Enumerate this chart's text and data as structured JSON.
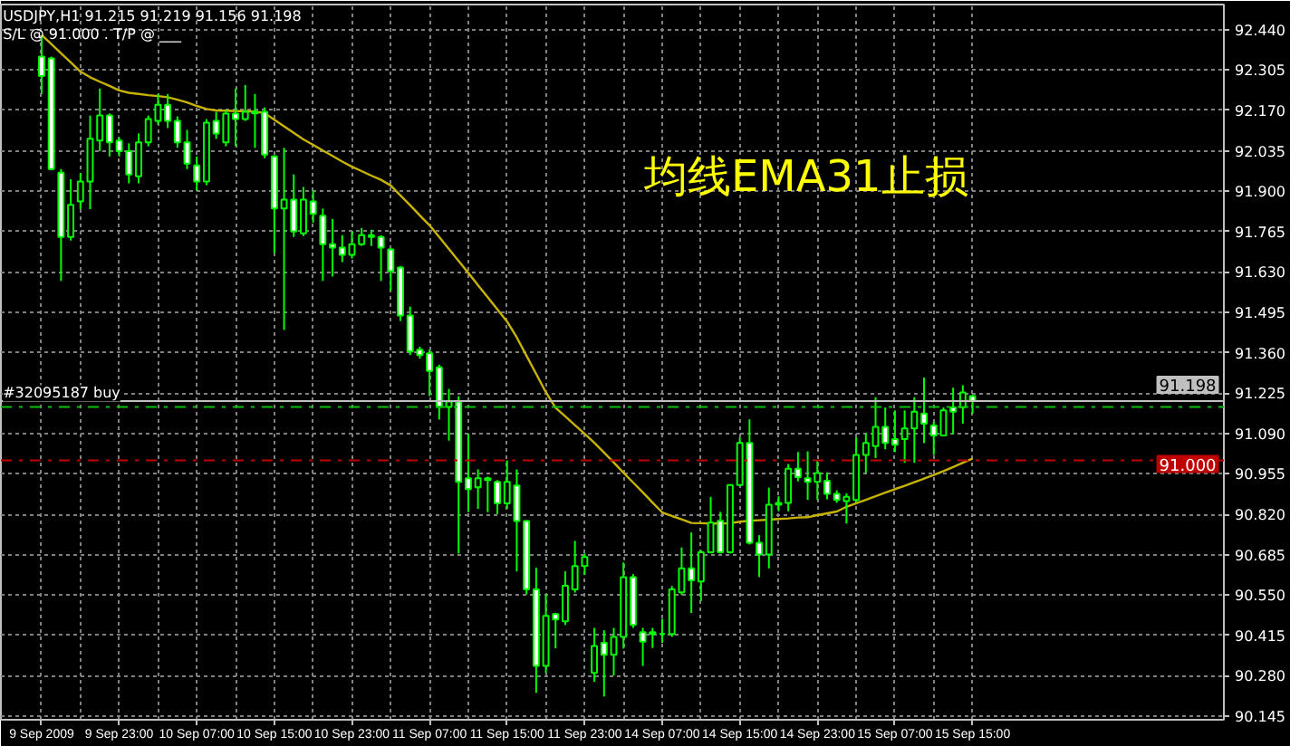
{
  "chart_data": {
    "type": "candlestick",
    "title": "USDJPY,H1  91.215 91.219 91.156 91.198",
    "subtitle": "S/L @ 91.000 . T/P @ ___",
    "annotations": [
      "均线EMA31止损"
    ],
    "color": "#00ff00",
    "categories": [
      "9 Sep 2009",
      null,
      null,
      null,
      null,
      null,
      null,
      null,
      "9 Sep 23:00",
      null,
      null,
      null,
      null,
      null,
      null,
      null,
      "10 Sep 07:00",
      null,
      null,
      null,
      null,
      null,
      null,
      null,
      "10 Sep 15:00",
      null,
      null,
      null,
      null,
      null,
      null,
      null,
      "10 Sep 23:00",
      null,
      null,
      null,
      null,
      null,
      null,
      null,
      "11 Sep 07:00",
      null,
      null,
      null,
      null,
      null,
      null,
      null,
      "11 Sep 15:00",
      null,
      null,
      null,
      null,
      null,
      null,
      null,
      "11 Sep 23:00",
      null,
      null,
      null,
      null,
      null,
      null,
      null,
      "14 Sep 07:00",
      null,
      null,
      null,
      null,
      null,
      null,
      null,
      "14 Sep 15:00",
      null,
      null,
      null,
      null,
      null,
      null,
      null,
      "14 Sep 23:00",
      null,
      null,
      null,
      null,
      null,
      null,
      null,
      "15 Sep 07:00",
      null,
      null,
      null,
      null,
      null,
      null,
      null,
      "15 Sep 15:00"
    ],
    "ohlc": [
      [
        92.35,
        92.42,
        92.225,
        92.285
      ],
      [
        92.344,
        92.35,
        91.97,
        91.974
      ],
      [
        91.962,
        91.974,
        91.6,
        91.747
      ],
      [
        91.747,
        91.94,
        91.735,
        91.854
      ],
      [
        91.866,
        91.96,
        91.84,
        91.932
      ],
      [
        91.932,
        92.153,
        91.84,
        92.075
      ],
      [
        92.069,
        92.243,
        92.034,
        92.153
      ],
      [
        92.153,
        92.16,
        92.016,
        92.063
      ],
      [
        92.069,
        92.08,
        92.016,
        92.034
      ],
      [
        92.034,
        92.06,
        91.926,
        91.956
      ],
      [
        91.95,
        92.093,
        91.926,
        92.063
      ],
      [
        92.063,
        92.153,
        92.05,
        92.141
      ],
      [
        92.135,
        92.225,
        92.123,
        92.189
      ],
      [
        92.189,
        92.225,
        92.111,
        92.135
      ],
      [
        92.135,
        92.15,
        92.045,
        92.063
      ],
      [
        92.063,
        92.105,
        91.974,
        91.992
      ],
      [
        91.986,
        92.016,
        91.902,
        91.932
      ],
      [
        91.932,
        92.141,
        91.92,
        92.129
      ],
      [
        92.135,
        92.165,
        92.075,
        92.093
      ],
      [
        92.063,
        92.171,
        92.05,
        92.159
      ],
      [
        92.159,
        92.243,
        92.05,
        92.141
      ],
      [
        92.141,
        92.255,
        92.135,
        92.165
      ],
      [
        92.165,
        92.225,
        92.045,
        92.16
      ],
      [
        92.165,
        92.18,
        92.01,
        92.022
      ],
      [
        92.016,
        92.02,
        91.693,
        91.842
      ],
      [
        91.842,
        92.045,
        91.436,
        91.872
      ],
      [
        91.872,
        91.956,
        91.747,
        91.765
      ],
      [
        91.759,
        91.914,
        91.75,
        91.872
      ],
      [
        91.866,
        91.902,
        91.795,
        91.824
      ],
      [
        91.818,
        91.842,
        91.6,
        91.723
      ],
      [
        91.723,
        91.807,
        91.615,
        91.711
      ],
      [
        91.711,
        91.753,
        91.663,
        91.687
      ],
      [
        91.687,
        91.765,
        91.675,
        91.723
      ],
      [
        91.723,
        91.777,
        91.717,
        91.753
      ],
      [
        91.753,
        91.771,
        91.717,
        91.747
      ],
      [
        91.747,
        91.753,
        91.6,
        91.711
      ],
      [
        91.705,
        91.71,
        91.567,
        91.633
      ],
      [
        91.645,
        91.65,
        91.466,
        91.484
      ],
      [
        91.484,
        91.514,
        91.352,
        91.364
      ],
      [
        91.37,
        91.38,
        91.34,
        91.352
      ],
      [
        91.358,
        91.37,
        91.215,
        91.299
      ],
      [
        91.311,
        91.32,
        91.137,
        91.179
      ],
      [
        91.179,
        91.239,
        91.066,
        91.197
      ],
      [
        91.197,
        91.215,
        90.689,
        90.928
      ],
      [
        90.94,
        91.089,
        90.827,
        90.904
      ],
      [
        90.91,
        90.97,
        90.838,
        90.94
      ],
      [
        90.94,
        90.946,
        90.827,
        90.934
      ],
      [
        90.928,
        90.934,
        90.82,
        90.856
      ],
      [
        90.856,
        91.0,
        90.838,
        90.928
      ],
      [
        90.916,
        90.97,
        90.629,
        90.797
      ],
      [
        90.797,
        90.8,
        90.552,
        90.569
      ],
      [
        90.569,
        90.641,
        90.223,
        90.313
      ],
      [
        90.313,
        90.552,
        90.289,
        90.48
      ],
      [
        90.486,
        90.49,
        90.372,
        90.468
      ],
      [
        90.462,
        90.629,
        90.45,
        90.581
      ],
      [
        90.569,
        90.731,
        90.558,
        90.647
      ],
      [
        90.647,
        90.689,
        90.617,
        90.677
      ],
      [
        90.29,
        90.44,
        90.26,
        90.38
      ],
      [
        90.39,
        90.432,
        90.211,
        90.35
      ],
      [
        90.35,
        90.44,
        90.281,
        90.41
      ],
      [
        90.41,
        90.659,
        90.371,
        90.61
      ],
      [
        90.61,
        90.62,
        90.44,
        90.45
      ],
      [
        90.426,
        90.44,
        90.313,
        90.394
      ],
      [
        90.426,
        90.44,
        90.373,
        90.42
      ],
      [
        90.42,
        90.47,
        90.39,
        90.42
      ],
      [
        90.42,
        90.58,
        90.41,
        90.569
      ],
      [
        90.559,
        90.709,
        90.55,
        90.639
      ],
      [
        90.639,
        90.759,
        90.49,
        90.599
      ],
      [
        90.595,
        90.7,
        90.53,
        90.693
      ],
      [
        90.693,
        90.878,
        90.689,
        90.792
      ],
      [
        90.798,
        90.828,
        90.689,
        90.693
      ],
      [
        90.693,
        90.92,
        90.689,
        90.918
      ],
      [
        90.918,
        91.077,
        90.915,
        91.058
      ],
      [
        91.058,
        91.137,
        90.719,
        90.725
      ],
      [
        90.725,
        90.75,
        90.61,
        90.685
      ],
      [
        90.685,
        90.909,
        90.639,
        90.852
      ],
      [
        90.852,
        90.88,
        90.83,
        90.858
      ],
      [
        90.858,
        90.988,
        90.83,
        90.972
      ],
      [
        90.972,
        91.028,
        90.93,
        90.944
      ],
      [
        90.94,
        91.03,
        90.868,
        90.928
      ],
      [
        90.928,
        90.998,
        90.868,
        90.958
      ],
      [
        90.932,
        90.96,
        90.87,
        90.888
      ],
      [
        90.888,
        90.9,
        90.858,
        90.868
      ],
      [
        90.864,
        90.89,
        90.789,
        90.878
      ],
      [
        90.868,
        91.077,
        90.86,
        91.018
      ],
      [
        91.018,
        91.091,
        90.958,
        91.058
      ],
      [
        91.048,
        91.211,
        91.008,
        91.112
      ],
      [
        91.112,
        91.177,
        91.037,
        91.058
      ],
      [
        91.071,
        91.167,
        91.028,
        91.052
      ],
      [
        91.071,
        91.167,
        90.992,
        91.107
      ],
      [
        91.107,
        91.211,
        90.992,
        91.163
      ],
      [
        91.157,
        91.277,
        91.058,
        91.123
      ],
      [
        91.117,
        91.13,
        91.018,
        91.083
      ],
      [
        91.083,
        91.177,
        91.08,
        91.167
      ],
      [
        91.177,
        91.243,
        91.087,
        91.163
      ],
      [
        91.177,
        91.251,
        91.123,
        91.227
      ],
      [
        91.215,
        91.219,
        91.156,
        91.198
      ]
    ],
    "series": [
      {
        "type": "line",
        "color": "#c8b400",
        "values": [
          92.422,
          92.392,
          92.361,
          92.331,
          92.3,
          92.281,
          92.266,
          92.252,
          92.237,
          92.229,
          92.225,
          92.221,
          92.218,
          92.214,
          92.206,
          92.197,
          92.185,
          92.175,
          92.17,
          92.169,
          92.168,
          92.167,
          92.166,
          92.161,
          92.139,
          92.117,
          92.095,
          92.073,
          92.055,
          92.036,
          92.018,
          91.999,
          91.982,
          91.967,
          91.952,
          91.938,
          91.919,
          91.886,
          91.853,
          91.819,
          91.786,
          91.747,
          91.707,
          91.667,
          91.627,
          91.586,
          91.546,
          91.505,
          91.464,
          91.411,
          91.35,
          91.289,
          91.228,
          91.176,
          91.147,
          91.118,
          91.089,
          91.059,
          91.026,
          90.993,
          90.959,
          90.926,
          90.893,
          90.859,
          90.826,
          90.814,
          90.803,
          90.791,
          90.79,
          90.789,
          90.789,
          90.79,
          90.795,
          90.798,
          90.8,
          90.802,
          90.804,
          90.806,
          90.809,
          90.81,
          90.817,
          90.823,
          90.829,
          90.845,
          90.857,
          90.868,
          90.88,
          90.892,
          90.904,
          90.915,
          90.927,
          90.939,
          90.951,
          90.964,
          90.978,
          90.992,
          91.006
        ]
      }
    ],
    "ylim": [
      90.133,
      92.524
    ],
    "yticks": [
      90.145,
      {
        "value": 90.28,
        "label": "90.280"
      },
      90.415,
      {
        "value": 90.55,
        "label": "90.550"
      },
      90.685,
      {
        "value": 90.82,
        "label": "90.820"
      },
      90.955,
      {
        "value": 91.09,
        "label": "91.090"
      },
      91.225,
      {
        "value": 91.36,
        "label": "91.360"
      },
      91.495,
      {
        "value": 91.63,
        "label": "91.630"
      },
      91.765,
      {
        "value": 91.9,
        "label": "91.900"
      },
      92.035,
      {
        "value": 92.17,
        "label": "92.170"
      },
      92.305,
      {
        "value": 92.44,
        "label": "92.440"
      }
    ],
    "ref_lines": [
      {
        "axis": "y",
        "value": 91.198,
        "label": "91.198",
        "color": "#c0c0c0",
        "line_style": "solid"
      },
      {
        "axis": "y",
        "value": 91.179,
        "label": "#32095187 buy",
        "color": "#00c000",
        "line_style": "dashdot"
      },
      {
        "axis": "y",
        "value": 91.0,
        "label": "91.000",
        "color": "#c00000",
        "line_style": "dashdot"
      }
    ],
    "grid": true,
    "line_style": "solid"
  }
}
